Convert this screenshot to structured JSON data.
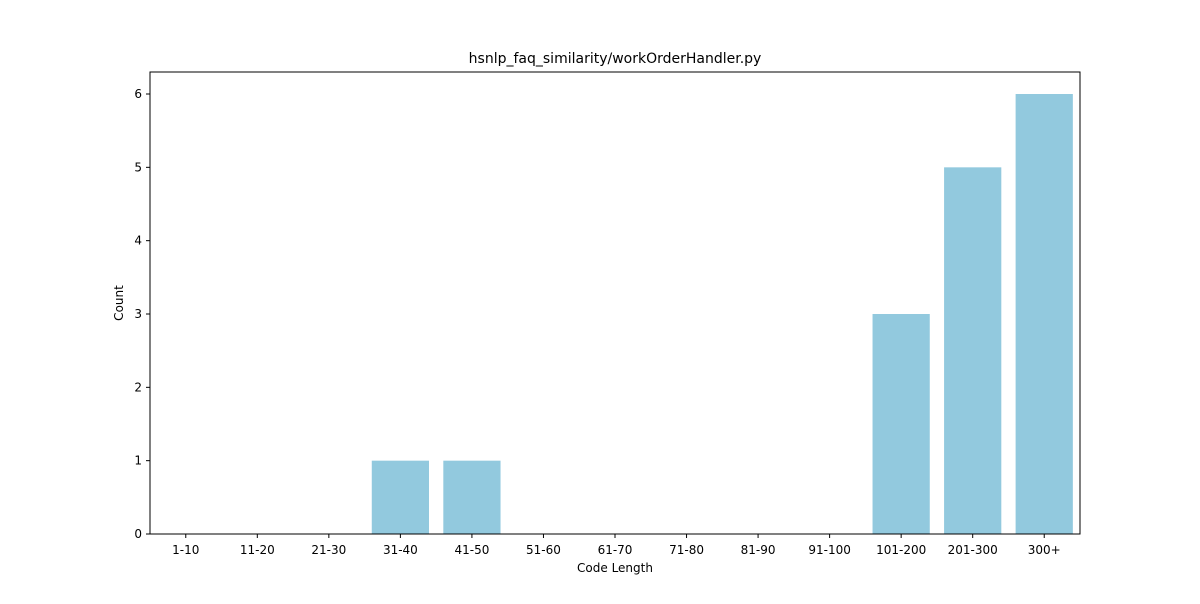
{
  "chart_data": {
    "type": "bar",
    "title": "hsnlp_faq_similarity/workOrderHandler.py",
    "xlabel": "Code Length",
    "ylabel": "Count",
    "categories": [
      "1-10",
      "11-20",
      "21-30",
      "31-40",
      "41-50",
      "51-60",
      "61-70",
      "71-80",
      "81-90",
      "91-100",
      "101-200",
      "201-300",
      "300+"
    ],
    "values": [
      0,
      0,
      0,
      1,
      1,
      0,
      0,
      0,
      0,
      0,
      3,
      5,
      6
    ],
    "ylim": [
      0,
      6.3
    ],
    "yticks": [
      0,
      1,
      2,
      3,
      4,
      5,
      6
    ],
    "bar_color": "#92c9de",
    "grid": false,
    "legend": "none"
  }
}
